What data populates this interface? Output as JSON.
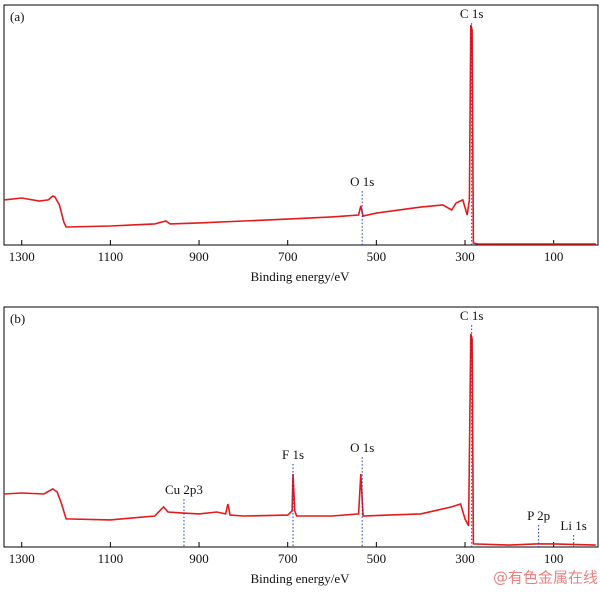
{
  "chart_data": [
    {
      "type": "line",
      "panel_label": "(a)",
      "xlabel": "Binding energy/eV",
      "color": "#e41a1c",
      "xlim": [
        1340,
        0
      ],
      "ylim": [
        0,
        100
      ],
      "xticks": [
        1300,
        1100,
        900,
        700,
        500,
        300,
        100
      ],
      "x": [
        1340,
        1300,
        1260,
        1240,
        1230,
        1225,
        1215,
        1205,
        1200,
        1100,
        1000,
        975,
        965,
        900,
        800,
        700,
        600,
        540,
        535,
        530,
        500,
        400,
        350,
        330,
        320,
        305,
        295,
        290,
        287,
        284,
        281,
        270,
        200,
        100,
        5
      ],
      "values": [
        18.8,
        19.6,
        18.3,
        18.8,
        20.4,
        20,
        16.7,
        9.6,
        7.5,
        7.9,
        8.8,
        10,
        8.8,
        9.2,
        10,
        10.8,
        11.7,
        12.5,
        16.3,
        12.1,
        13.3,
        15.8,
        16.7,
        14.6,
        17.5,
        18.8,
        12.5,
        18.8,
        91.7,
        89.6,
        0.8,
        0.4,
        0.4,
        0.4,
        0.4
      ],
      "annotations": [
        {
          "text": "O 1s",
          "x": 532,
          "y": 25.8
        },
        {
          "text": "C 1s",
          "x": 285,
          "y": 95.8
        }
      ]
    },
    {
      "type": "line",
      "panel_label": "(b)",
      "xlabel": "Binding energy/eV",
      "color": "#e41a1c",
      "xlim": [
        1340,
        0
      ],
      "ylim": [
        0,
        100
      ],
      "xticks": [
        1300,
        1100,
        900,
        700,
        500,
        300,
        100
      ],
      "x": [
        1340,
        1300,
        1250,
        1230,
        1220,
        1210,
        1200,
        1100,
        1000,
        980,
        970,
        940,
        900,
        860,
        840,
        835,
        830,
        800,
        700,
        690,
        688,
        684,
        680,
        600,
        540,
        535,
        530,
        400,
        330,
        310,
        300,
        292,
        287,
        284,
        281,
        200,
        140,
        100,
        5
      ],
      "values": [
        22.1,
        22.5,
        22.1,
        24.2,
        22.9,
        17.9,
        11.7,
        11.3,
        12.9,
        16.7,
        14.6,
        14.2,
        13.8,
        14.6,
        13.8,
        17.9,
        13.3,
        12.9,
        13.3,
        15,
        30.4,
        15,
        12.9,
        12.9,
        13.8,
        30.4,
        12.9,
        13.8,
        16.7,
        17.9,
        11.7,
        8.8,
        88.8,
        86.7,
        1.3,
        0.8,
        1.3,
        1.3,
        0.8
      ],
      "annotations": [
        {
          "text": "Cu 2p3",
          "x": 934,
          "y": 23.3
        },
        {
          "text": "F 1s",
          "x": 688,
          "y": 37.9
        },
        {
          "text": "O 1s",
          "x": 532,
          "y": 40.8
        },
        {
          "text": "C 1s",
          "x": 285,
          "y": 95.8
        },
        {
          "text": "P 2p",
          "x": 134,
          "y": 12.5
        },
        {
          "text": "Li 1s",
          "x": 55,
          "y": 8.3
        }
      ]
    }
  ],
  "watermark": "@有色金属在线"
}
